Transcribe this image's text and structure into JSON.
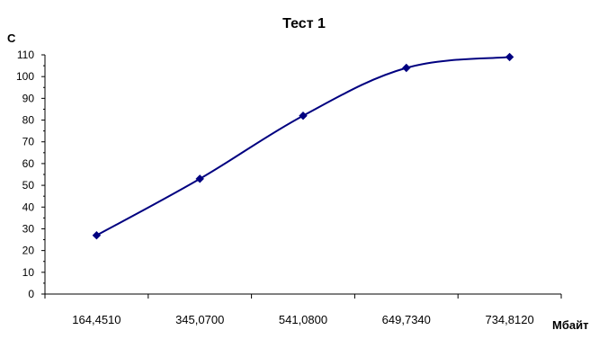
{
  "chart_data": {
    "type": "line",
    "title": "Тест 1",
    "xlabel": "Мбайт",
    "ylabel": "С",
    "categories": [
      "164,4510",
      "345,0700",
      "541,0800",
      "649,7340",
      "734,8120"
    ],
    "series": [
      {
        "values": [
          27,
          53,
          82,
          104,
          109
        ]
      }
    ],
    "ylim": [
      0,
      110
    ],
    "yticks": [
      "0",
      "10",
      "20",
      "30",
      "40",
      "50",
      "60",
      "70",
      "80",
      "90",
      "100",
      "110"
    ],
    "grid": false,
    "legend": "none",
    "colors": {
      "series": "#000080",
      "axis": "#000000",
      "background": "#ffffff"
    }
  }
}
